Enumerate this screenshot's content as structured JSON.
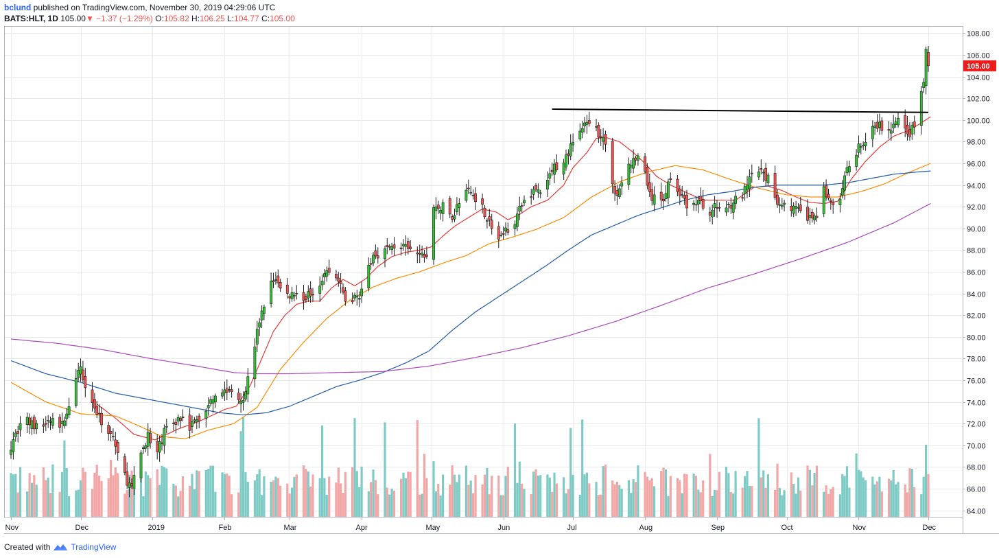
{
  "header": {
    "author": "bclund",
    "published_text": "published on TradingView.com, November 30, 2019 04:29:06 UTC"
  },
  "ohlc_bar": {
    "symbol": "BATS:HLT, 1D",
    "last": "105.00",
    "change": "−1.37 (−1.29%)",
    "open_label": "O:",
    "open": "105.82",
    "high_label": "H:",
    "high": "106.25",
    "low_label": "L:",
    "low": "104.77",
    "close_label": "C:",
    "close": "105.00",
    "down_arrow": "▼"
  },
  "footer": {
    "created_with": "Created with",
    "brand": "TradingView"
  },
  "colors": {
    "up": "#26a69a",
    "up_body": "#34c235",
    "down_body": "#ef5350",
    "vol_up": "#7ecbc6",
    "vol_down": "#f3a6a6",
    "ma20": "#e53935",
    "ma50": "#fb8c00",
    "ma100": "#1e5aa8",
    "ma200": "#ab47bc",
    "grid": "#e9ebee",
    "price_label_bg": "#ef1c1c"
  },
  "chart_data": {
    "type": "candlestick",
    "symbol": "BATS:HLT",
    "interval": "1D",
    "ylim": [
      63.4,
      108.6
    ],
    "y_ticks": [
      "108.00",
      "106.00",
      "104.00",
      "102.00",
      "100.00",
      "98.00",
      "96.00",
      "94.00",
      "92.00",
      "90.00",
      "88.00",
      "86.00",
      "84.00",
      "82.00",
      "80.00",
      "78.00",
      "76.00",
      "74.00",
      "72.00",
      "70.00",
      "68.00",
      "66.00",
      "64.00"
    ],
    "current_price_label": "105.00",
    "x_labels": [
      "Nov",
      "Dec",
      "2019",
      "Feb",
      "Mar",
      "Apr",
      "May",
      "Jun",
      "Jul",
      "Aug",
      "Sep",
      "Oct",
      "Nov",
      "Dec"
    ],
    "x_label_days": [
      0,
      30,
      61,
      92,
      120,
      151,
      181,
      212,
      242,
      273,
      304,
      334,
      365,
      395
    ],
    "date_range": [
      "2018-10-29",
      "2019-11-29"
    ],
    "grid": true,
    "close_anchors": [
      [
        0,
        70
      ],
      [
        5,
        72.5
      ],
      [
        12,
        71.5
      ],
      [
        17,
        72.3
      ],
      [
        22,
        71.8
      ],
      [
        28,
        75.8
      ],
      [
        30,
        77.2
      ],
      [
        33,
        75
      ],
      [
        38,
        72.5
      ],
      [
        44,
        70.8
      ],
      [
        48,
        67.5
      ],
      [
        52,
        66
      ],
      [
        56,
        69.2
      ],
      [
        59,
        71
      ],
      [
        62,
        68.5
      ],
      [
        66,
        71.3
      ],
      [
        70,
        72
      ],
      [
        74,
        72.8
      ],
      [
        77,
        71.8
      ],
      [
        80,
        72.3
      ],
      [
        84,
        73
      ],
      [
        86,
        74.5
      ],
      [
        90,
        75
      ],
      [
        95,
        75
      ],
      [
        100,
        74.3
      ],
      [
        103,
        77
      ],
      [
        107,
        81.5
      ],
      [
        111,
        84.5
      ],
      [
        114,
        85.5
      ],
      [
        117,
        83.8
      ],
      [
        122,
        84
      ],
      [
        127,
        83.6
      ],
      [
        131,
        84.5
      ],
      [
        136,
        86
      ],
      [
        140,
        85.5
      ],
      [
        145,
        83
      ],
      [
        150,
        84
      ],
      [
        153,
        85.5
      ],
      [
        156,
        87.5
      ],
      [
        161,
        88
      ],
      [
        166,
        88.5
      ],
      [
        171,
        88
      ],
      [
        176,
        87.5
      ],
      [
        181,
        87.5
      ],
      [
        182,
        91.8
      ],
      [
        186,
        92
      ],
      [
        190,
        91
      ],
      [
        193,
        92.5
      ],
      [
        197,
        93.5
      ],
      [
        202,
        92.5
      ],
      [
        206,
        90.5
      ],
      [
        210,
        89
      ],
      [
        214,
        90
      ],
      [
        217,
        90.8
      ],
      [
        221,
        92.5
      ],
      [
        225,
        93.5
      ],
      [
        230,
        93.5
      ],
      [
        233,
        95.5
      ],
      [
        237,
        96
      ],
      [
        240,
        97
      ],
      [
        244,
        99
      ],
      [
        248,
        99.5
      ],
      [
        252,
        99
      ],
      [
        255,
        98.5
      ],
      [
        258,
        95
      ],
      [
        261,
        93
      ],
      [
        264,
        95
      ],
      [
        267,
        96
      ],
      [
        270,
        96.5
      ],
      [
        272,
        96.5
      ],
      [
        275,
        93
      ],
      [
        278,
        92.5
      ],
      [
        281,
        92.8
      ],
      [
        285,
        95.5
      ],
      [
        288,
        93
      ],
      [
        292,
        92
      ],
      [
        296,
        92.5
      ],
      [
        300,
        91.5
      ],
      [
        304,
        92
      ],
      [
        307,
        91.8
      ],
      [
        311,
        92.5
      ],
      [
        315,
        93
      ],
      [
        319,
        94.8
      ],
      [
        322,
        95.3
      ],
      [
        326,
        94.5
      ],
      [
        330,
        92.5
      ],
      [
        334,
        92.2
      ],
      [
        336,
        92
      ],
      [
        340,
        91.5
      ],
      [
        344,
        90.8
      ],
      [
        347,
        91.3
      ],
      [
        350,
        93.5
      ],
      [
        354,
        92
      ],
      [
        356,
        91.5
      ],
      [
        359,
        94.5
      ],
      [
        362,
        96.5
      ],
      [
        365,
        97.5
      ],
      [
        368,
        98
      ],
      [
        371,
        99
      ],
      [
        374,
        99.5
      ],
      [
        377,
        98.5
      ],
      [
        380,
        99.5
      ],
      [
        383,
        100
      ],
      [
        386,
        98.5
      ],
      [
        389,
        99.5
      ],
      [
        391,
        101
      ],
      [
        392,
        102.5
      ],
      [
        393,
        103.5
      ],
      [
        394,
        106.2
      ],
      [
        395,
        105
      ]
    ],
    "ma_anchors": {
      "MA20": [
        [
          37,
          73.8
        ],
        [
          45,
          72.5
        ],
        [
          53,
          71
        ],
        [
          62,
          70.5
        ],
        [
          72,
          71.5
        ],
        [
          82,
          72.3
        ],
        [
          92,
          73.3
        ],
        [
          97,
          73.6
        ],
        [
          103,
          75.5
        ],
        [
          108,
          78
        ],
        [
          113,
          80.5
        ],
        [
          118,
          82
        ],
        [
          123,
          83
        ],
        [
          128,
          83.3
        ],
        [
          133,
          83.3
        ],
        [
          138,
          84.5
        ],
        [
          143,
          85.3
        ],
        [
          148,
          84.7
        ],
        [
          153,
          85.4
        ],
        [
          158,
          86.5
        ],
        [
          164,
          87.4
        ],
        [
          170,
          87.8
        ],
        [
          176,
          88
        ],
        [
          181,
          88.3
        ],
        [
          186,
          89.3
        ],
        [
          191,
          90.2
        ],
        [
          197,
          91
        ],
        [
          203,
          91.8
        ],
        [
          209,
          91.5
        ],
        [
          214,
          90.8
        ],
        [
          219,
          91.3
        ],
        [
          224,
          92
        ],
        [
          231,
          92.6
        ],
        [
          238,
          94
        ],
        [
          242,
          95.6
        ],
        [
          248,
          97
        ],
        [
          252,
          98.3
        ],
        [
          256,
          98.4
        ],
        [
          262,
          98
        ],
        [
          268,
          97
        ],
        [
          273,
          96
        ],
        [
          278,
          94.8
        ],
        [
          284,
          94
        ],
        [
          291,
          93.3
        ],
        [
          298,
          92.6
        ],
        [
          304,
          92.6
        ],
        [
          312,
          92.6
        ],
        [
          320,
          93.8
        ],
        [
          326,
          93.9
        ],
        [
          332,
          93.5
        ],
        [
          338,
          92.9
        ],
        [
          344,
          92.4
        ],
        [
          350,
          92.3
        ],
        [
          356,
          92.5
        ],
        [
          362,
          94.6
        ],
        [
          368,
          96.2
        ],
        [
          374,
          97.5
        ],
        [
          380,
          98.5
        ],
        [
          386,
          99
        ],
        [
          391,
          99.6
        ],
        [
          396,
          100.3
        ]
      ],
      "MA50": [
        [
          0,
          75.8
        ],
        [
          15,
          74
        ],
        [
          30,
          72.9
        ],
        [
          45,
          72.7
        ],
        [
          55,
          71.8
        ],
        [
          65,
          70.8
        ],
        [
          75,
          70.6
        ],
        [
          85,
          71.4
        ],
        [
          96,
          72
        ],
        [
          106,
          73.5
        ],
        [
          116,
          77
        ],
        [
          126,
          79.5
        ],
        [
          136,
          81.7
        ],
        [
          146,
          83.4
        ],
        [
          156,
          84.6
        ],
        [
          166,
          85.4
        ],
        [
          176,
          86
        ],
        [
          186,
          86.8
        ],
        [
          196,
          87.5
        ],
        [
          206,
          88.6
        ],
        [
          216,
          89.2
        ],
        [
          226,
          89.9
        ],
        [
          238,
          91
        ],
        [
          250,
          92.9
        ],
        [
          262,
          94.3
        ],
        [
          274,
          95.2
        ],
        [
          286,
          95.8
        ],
        [
          298,
          95.4
        ],
        [
          310,
          94.5
        ],
        [
          322,
          93.7
        ],
        [
          334,
          93.1
        ],
        [
          344,
          92.9
        ],
        [
          356,
          92.9
        ],
        [
          366,
          93.4
        ],
        [
          376,
          94.1
        ],
        [
          386,
          95.1
        ],
        [
          396,
          96
        ]
      ],
      "MA100": [
        [
          0,
          77.8
        ],
        [
          15,
          76.6
        ],
        [
          30,
          75.8
        ],
        [
          45,
          74.8
        ],
        [
          60,
          74.2
        ],
        [
          75,
          73.6
        ],
        [
          90,
          73
        ],
        [
          100,
          72.8
        ],
        [
          110,
          73
        ],
        [
          120,
          73.6
        ],
        [
          130,
          74.5
        ],
        [
          140,
          75.4
        ],
        [
          150,
          76
        ],
        [
          160,
          76.7
        ],
        [
          170,
          77.6
        ],
        [
          180,
          78.7
        ],
        [
          190,
          80.6
        ],
        [
          200,
          82.3
        ],
        [
          210,
          83.7
        ],
        [
          220,
          85.1
        ],
        [
          230,
          86.5
        ],
        [
          240,
          88
        ],
        [
          250,
          89.4
        ],
        [
          260,
          90.3
        ],
        [
          270,
          91.2
        ],
        [
          280,
          91.9
        ],
        [
          290,
          92.6
        ],
        [
          300,
          93.1
        ],
        [
          310,
          93.4
        ],
        [
          320,
          93.8
        ],
        [
          330,
          94
        ],
        [
          340,
          94
        ],
        [
          350,
          94
        ],
        [
          360,
          94.2
        ],
        [
          370,
          94.6
        ],
        [
          380,
          95
        ],
        [
          390,
          95.2
        ],
        [
          396,
          95.3
        ]
      ],
      "MA200": [
        [
          0,
          79.8
        ],
        [
          20,
          79.4
        ],
        [
          40,
          78.8
        ],
        [
          60,
          78
        ],
        [
          80,
          77.3
        ],
        [
          96,
          76.7
        ],
        [
          106,
          76.6
        ],
        [
          120,
          76.6
        ],
        [
          140,
          76.7
        ],
        [
          160,
          76.8
        ],
        [
          180,
          77.3
        ],
        [
          200,
          78.1
        ],
        [
          220,
          79
        ],
        [
          240,
          80.1
        ],
        [
          260,
          81.4
        ],
        [
          280,
          82.9
        ],
        [
          300,
          84.5
        ],
        [
          320,
          85.8
        ],
        [
          340,
          87.2
        ],
        [
          360,
          88.7
        ],
        [
          380,
          90.5
        ],
        [
          396,
          92.3
        ]
      ]
    },
    "resistance_line": {
      "from": [
        233,
        101
      ],
      "to": [
        395,
        100.7
      ]
    }
  }
}
